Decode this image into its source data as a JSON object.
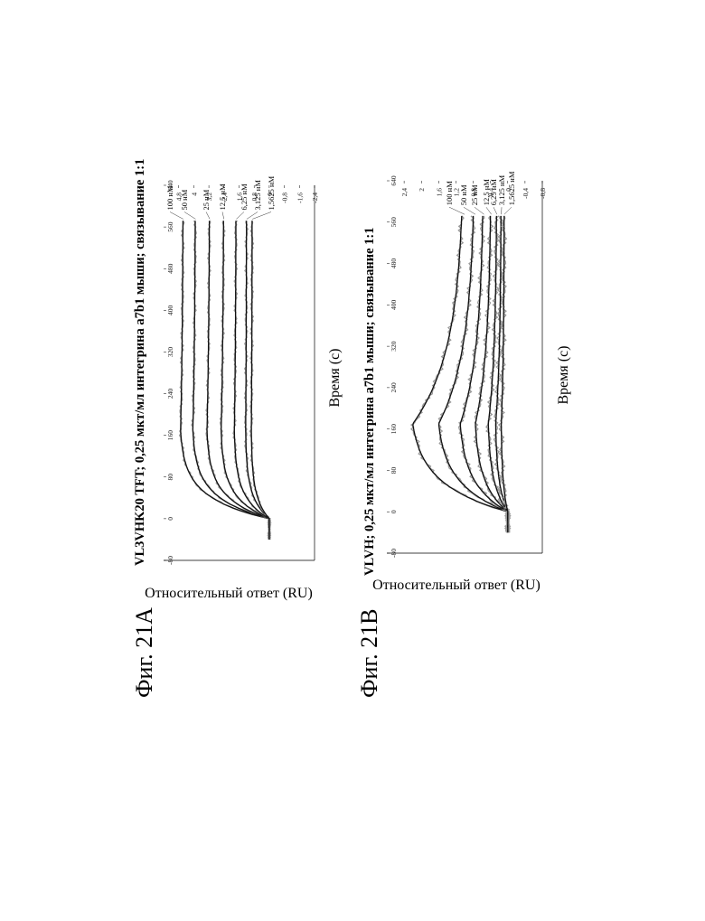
{
  "figures": [
    {
      "fig_label": "Фиг. 21А",
      "title": "VL3VHK20 TFT; 0,25 мкт/мл интегрина а7b1 мыши; связывание 1:1",
      "xlabel": "Время (с)",
      "ylabel": "Относительный ответ (RU)"
    },
    {
      "fig_label": "Фиг. 21В",
      "title": "VLVH; 0,25 мкт/мл интегрина а7b1 мыши; связывание 1:1",
      "xlabel": "Время (с)",
      "ylabel": "Относительный ответ (RU)"
    }
  ],
  "chart_data": [
    {
      "type": "line",
      "title": "VL3VHK20 TFT; 0,25 мкт/мл интегрина а7b1 мыши; связывание 1:1",
      "xlabel": "Время (с)",
      "ylabel": "Относительный ответ (RU)",
      "xlim": [
        -80,
        640
      ],
      "ylim": [
        -2.4,
        5.6
      ],
      "x_ticks": [
        "-80",
        "0",
        "80",
        "160",
        "240",
        "320",
        "400",
        "480",
        "560",
        "640"
      ],
      "y_ticks": [
        "-2,4",
        "-1,6",
        "-0,8",
        "0",
        "0,8",
        "1,6",
        "2,4",
        "3,2",
        "4",
        "4,8"
      ],
      "association_end": 170,
      "dissociation_end": 575,
      "series": [
        {
          "name": "100 нМ",
          "peak": 4.7,
          "end": 4.55
        },
        {
          "name": "50 нМ",
          "peak": 4.05,
          "end": 3.9
        },
        {
          "name": "25 нМ",
          "peak": 3.3,
          "end": 3.15
        },
        {
          "name": "12,5 нМ",
          "peak": 2.55,
          "end": 2.4
        },
        {
          "name": "6,25 нМ",
          "peak": 1.85,
          "end": 1.75
        },
        {
          "name": "3,125 нМ",
          "peak": 1.25,
          "end": 1.2
        },
        {
          "name": "1,5625 нМ",
          "peak": 0.95,
          "end": 0.9
        }
      ]
    },
    {
      "type": "line",
      "title": "VLVH; 0,25 мкт/мл интегрина а7b1 мыши; связывание 1:1",
      "xlabel": "Время (с)",
      "ylabel": "Относительный ответ (RU)",
      "xlim": [
        -80,
        640
      ],
      "ylim": [
        -0.8,
        2.8
      ],
      "x_ticks": [
        "-80",
        "0",
        "80",
        "160",
        "240",
        "320",
        "400",
        "480",
        "560",
        "640"
      ],
      "y_ticks": [
        "-0,8",
        "-0,4",
        "0",
        "0,4",
        "0,8",
        "1,2",
        "1,6",
        "2",
        "2,4"
      ],
      "association_end": 170,
      "dissociation_end": 575,
      "series": [
        {
          "name": "100 нМ",
          "peak": 2.2,
          "end": 1.0
        },
        {
          "name": "50 нМ",
          "peak": 1.6,
          "end": 0.75
        },
        {
          "name": "25 нМ",
          "peak": 1.1,
          "end": 0.55
        },
        {
          "name": "12,5 нМ",
          "peak": 0.75,
          "end": 0.38
        },
        {
          "name": "6,25 нМ",
          "peak": 0.45,
          "end": 0.25
        },
        {
          "name": "3,125 нМ",
          "peak": 0.28,
          "end": 0.15
        },
        {
          "name": "1,5625 нМ",
          "peak": 0.15,
          "end": 0.08
        }
      ]
    }
  ]
}
